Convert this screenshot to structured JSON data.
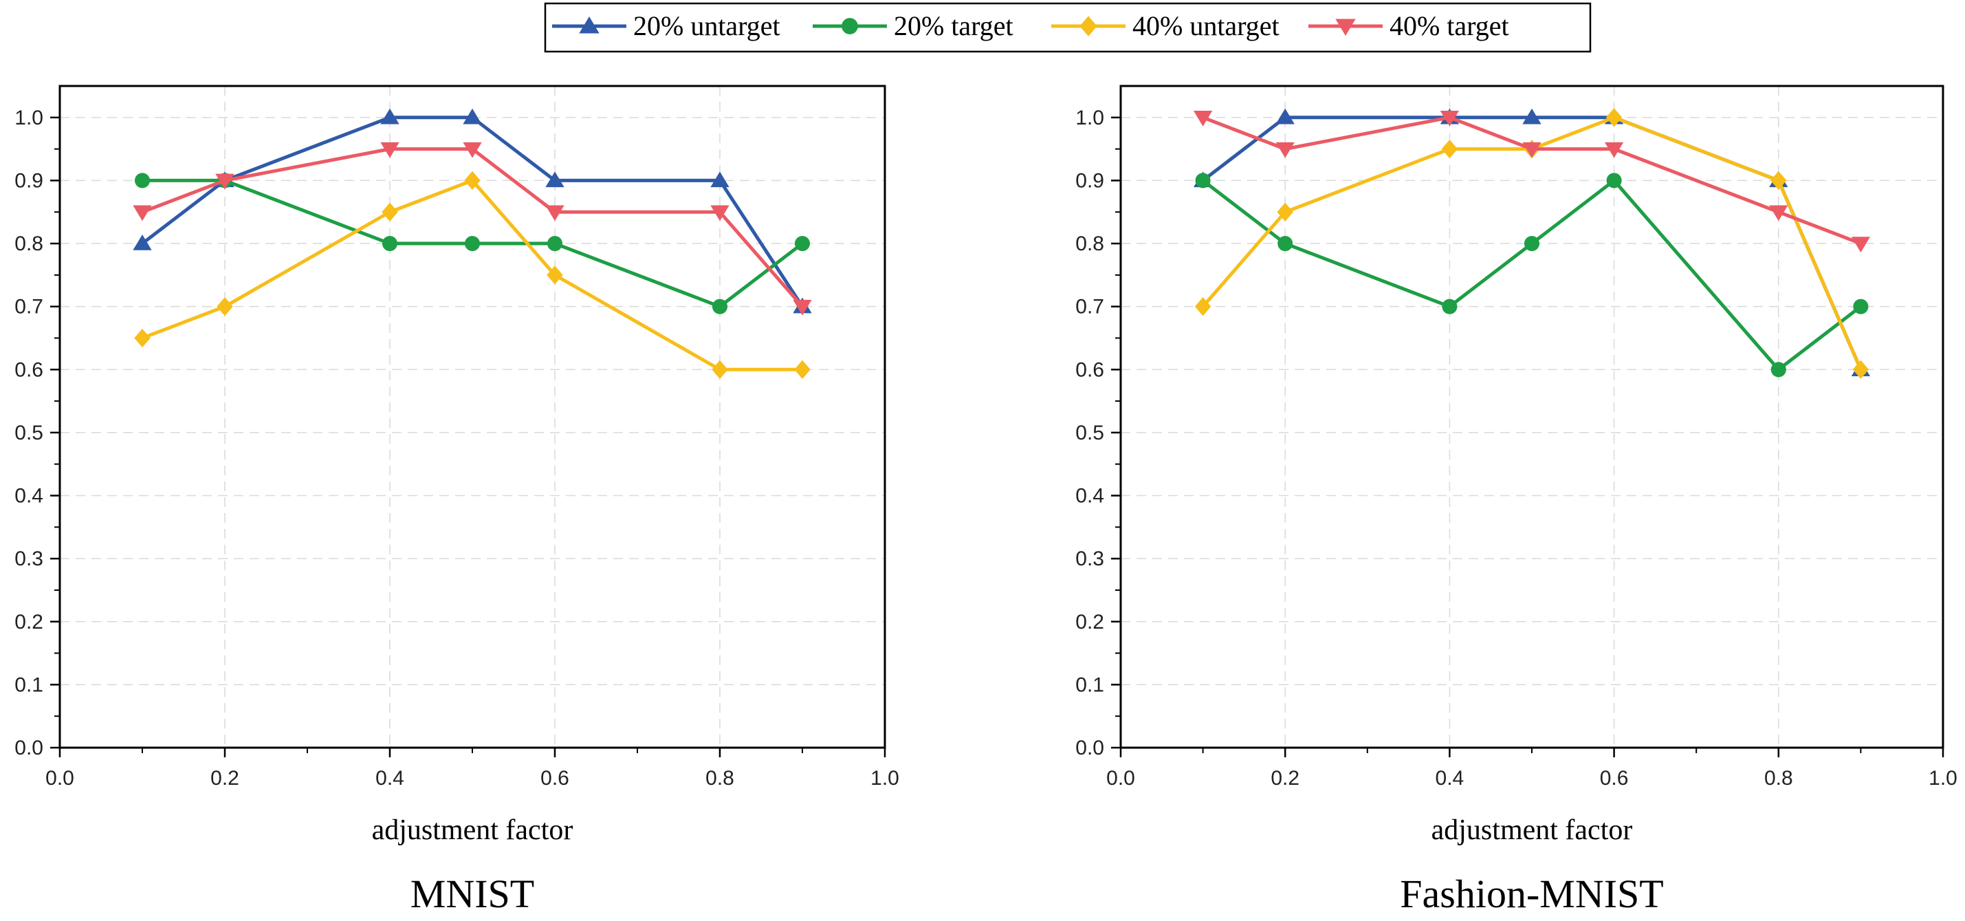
{
  "legend": [
    {
      "name": "20% untarget",
      "color": "#2f5aa8",
      "marker": "triangle-up"
    },
    {
      "name": "20% target",
      "color": "#1e9e45",
      "marker": "circle"
    },
    {
      "name": "40% untarget",
      "color": "#f7bd19",
      "marker": "diamond"
    },
    {
      "name": "40% target",
      "color": "#eb5a64",
      "marker": "triangle-down"
    }
  ],
  "chart_data": [
    {
      "type": "line",
      "title": "MNIST",
      "xlabel": "adjustment factor",
      "ylabel": "",
      "xlim": [
        0.0,
        1.0
      ],
      "ylim": [
        0.0,
        1.05
      ],
      "xticks": [
        "0.0",
        "0.2",
        "0.4",
        "0.6",
        "0.8",
        "1.0"
      ],
      "yticks": [
        "0.0",
        "0.1",
        "0.2",
        "0.3",
        "0.4",
        "0.5",
        "0.6",
        "0.7",
        "0.8",
        "0.9",
        "1.0"
      ],
      "grid": true,
      "x": [
        0.1,
        0.2,
        0.4,
        0.5,
        0.6,
        0.8,
        0.9
      ],
      "series": [
        {
          "name": "20% untarget",
          "values": [
            0.8,
            0.9,
            1.0,
            1.0,
            0.9,
            0.9,
            0.7
          ]
        },
        {
          "name": "20% target",
          "values": [
            0.9,
            0.9,
            0.8,
            0.8,
            0.8,
            0.7,
            0.8
          ]
        },
        {
          "name": "40% untarget",
          "values": [
            0.65,
            0.7,
            0.85,
            0.9,
            0.75,
            0.6,
            0.6
          ]
        },
        {
          "name": "40% target",
          "values": [
            0.85,
            0.9,
            0.95,
            0.95,
            0.85,
            0.85,
            0.7
          ]
        }
      ]
    },
    {
      "type": "line",
      "title": "Fashion-MNIST",
      "xlabel": "adjustment factor",
      "ylabel": "",
      "xlim": [
        0.0,
        1.0
      ],
      "ylim": [
        0.0,
        1.05
      ],
      "xticks": [
        "0.0",
        "0.2",
        "0.4",
        "0.6",
        "0.8",
        "1.0"
      ],
      "yticks": [
        "0.0",
        "0.1",
        "0.2",
        "0.3",
        "0.4",
        "0.5",
        "0.6",
        "0.7",
        "0.8",
        "0.9",
        "1.0"
      ],
      "grid": true,
      "x": [
        0.1,
        0.2,
        0.4,
        0.5,
        0.6,
        0.8,
        0.9
      ],
      "series": [
        {
          "name": "20% untarget",
          "values": [
            0.9,
            1.0,
            1.0,
            1.0,
            1.0,
            0.9,
            0.6
          ]
        },
        {
          "name": "20% target",
          "values": [
            0.9,
            0.8,
            0.7,
            0.8,
            0.9,
            0.6,
            0.7
          ]
        },
        {
          "name": "40% untarget",
          "values": [
            0.7,
            0.85,
            0.95,
            0.95,
            1.0,
            0.9,
            0.6
          ]
        },
        {
          "name": "40% target",
          "values": [
            1.0,
            0.95,
            1.0,
            0.95,
            0.95,
            0.85,
            0.8
          ]
        }
      ]
    }
  ]
}
